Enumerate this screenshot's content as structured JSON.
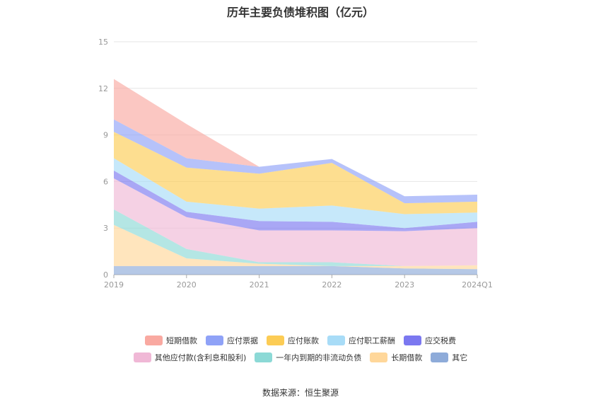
{
  "title": "历年主要负债堆积图（亿元）",
  "source": "数据来源：恒生聚源",
  "chart_data": {
    "type": "area",
    "stacked": true,
    "categories": [
      "2019",
      "2020",
      "2021",
      "2022",
      "2023",
      "2024Q1"
    ],
    "ylim": [
      0,
      15
    ],
    "yticks": [
      "0",
      "3",
      "6",
      "9",
      "12",
      "15"
    ],
    "grid": true,
    "legend_position": "bottom",
    "series": [
      {
        "name": "其它",
        "color": "#8eabd9",
        "values": [
          0.55,
          0.55,
          0.55,
          0.55,
          0.4,
          0.35
        ]
      },
      {
        "name": "长期借款",
        "color": "#ffd79a",
        "values": [
          2.65,
          0.5,
          0.15,
          0.0,
          0.15,
          0.25
        ]
      },
      {
        "name": "一年内到期的非流动负债",
        "color": "#8cd9d6",
        "values": [
          1.0,
          0.6,
          0.1,
          0.25,
          0.0,
          0.0
        ]
      },
      {
        "name": "其他应付款(含利息和股利)",
        "color": "#f0b8d6",
        "values": [
          2.0,
          2.05,
          2.05,
          2.05,
          2.25,
          2.4
        ]
      },
      {
        "name": "应交税费",
        "color": "#7b78f0",
        "values": [
          0.5,
          0.35,
          0.6,
          0.55,
          0.2,
          0.4
        ]
      },
      {
        "name": "应付职工薪酬",
        "color": "#a8dcf7",
        "values": [
          0.8,
          0.65,
          0.8,
          1.05,
          0.9,
          0.6
        ]
      },
      {
        "name": "应付账款",
        "color": "#fccc55",
        "values": [
          1.7,
          2.2,
          2.25,
          2.75,
          0.7,
          0.7
        ]
      },
      {
        "name": "应付票据",
        "color": "#8fa2f7",
        "values": [
          0.8,
          0.6,
          0.45,
          0.25,
          0.45,
          0.45
        ]
      },
      {
        "name": "短期借款",
        "color": "#f9a9a1",
        "values": [
          2.6,
          2.2,
          0.0,
          0.0,
          0.0,
          0.0
        ]
      }
    ],
    "legend_rows": [
      [
        "短期借款",
        "应付票据",
        "应付账款",
        "应付职工薪酬",
        "应交税费"
      ],
      [
        "其他应付款(含利息和股利)",
        "一年内到期的非流动负债",
        "长期借款",
        "其它"
      ]
    ]
  }
}
